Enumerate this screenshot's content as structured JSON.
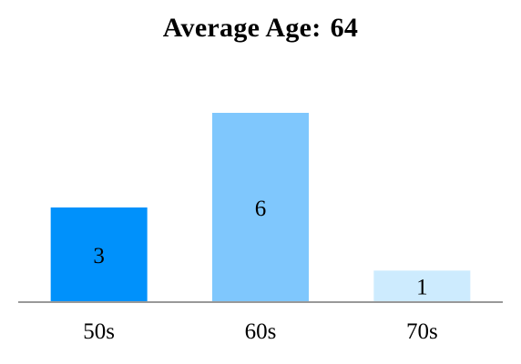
{
  "chart_data": {
    "type": "bar",
    "title": "Average Age:",
    "title_value": "64",
    "categories": [
      "50s",
      "60s",
      "70s"
    ],
    "values": [
      3,
      6,
      1
    ],
    "bar_colors": [
      "#0091fb",
      "#7fc7fd",
      "#cdebfe"
    ],
    "value_labels_inside": true,
    "ylim": [
      0,
      6
    ],
    "grid": false,
    "legend": "none",
    "xlabel": "",
    "ylabel": ""
  },
  "colors": {
    "baseline": "#999999",
    "text": "#000000"
  }
}
